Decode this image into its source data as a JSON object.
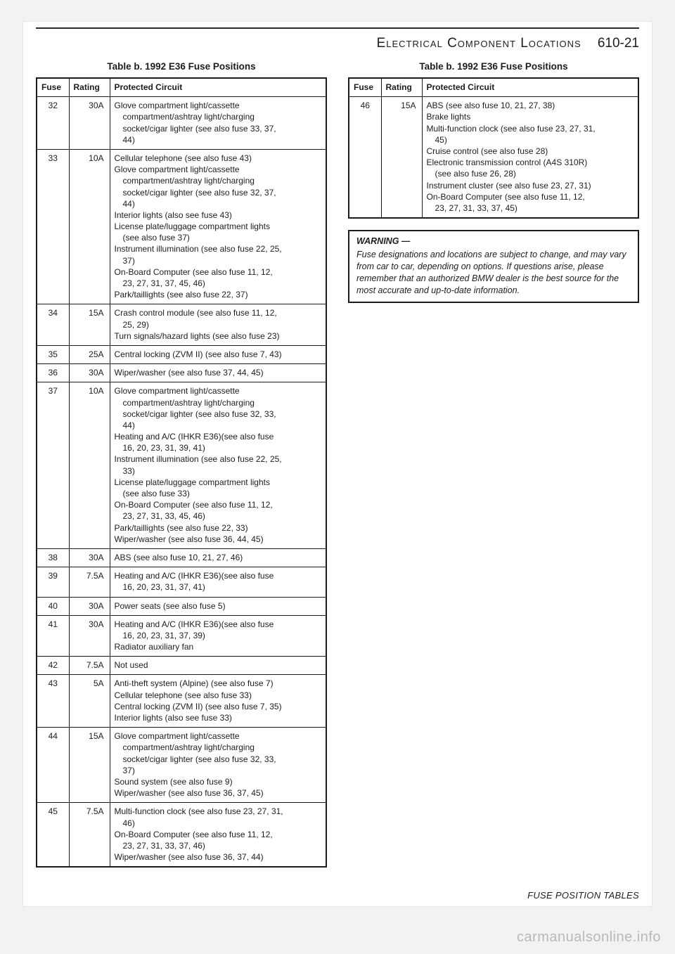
{
  "header": {
    "section": "Electrical Component Locations",
    "pageref": "610-21"
  },
  "footer_label": "FUSE POSITION TABLES",
  "watermark": "carmanualsonline.info",
  "table_title": "Table b. 1992 E36 Fuse Positions",
  "columns": {
    "fuse": "Fuse",
    "rating": "Rating",
    "circuit": "Protected Circuit"
  },
  "left_rows": [
    {
      "fuse": "32",
      "rating": "30A",
      "circuit": "Glove compartment light/cassette\n  compartment/ashtray light/charging\n  socket/cigar lighter (see also fuse 33, 37,\n  44)"
    },
    {
      "fuse": "33",
      "rating": "10A",
      "circuit": "Cellular telephone (see also fuse 43)\nGlove compartment light/cassette\n  compartment/ashtray light/charging\n  socket/cigar lighter (see also fuse 32, 37,\n  44)\nInterior lights (also see fuse 43)\nLicense plate/luggage compartment lights\n  (see also fuse 37)\nInstrument illumination (see also fuse 22, 25,\n  37)\nOn-Board Computer (see also fuse 11, 12,\n  23, 27, 31, 37, 45, 46)\nPark/taillights (see also fuse 22, 37)"
    },
    {
      "fuse": "34",
      "rating": "15A",
      "circuit": "Crash control module (see also fuse 11, 12,\n  25, 29)\nTurn signals/hazard lights (see also fuse 23)"
    },
    {
      "fuse": "35",
      "rating": "25A",
      "circuit": "Central locking (ZVM II) (see also fuse 7, 43)"
    },
    {
      "fuse": "36",
      "rating": "30A",
      "circuit": "Wiper/washer (see also fuse 37, 44, 45)"
    },
    {
      "fuse": "37",
      "rating": "10A",
      "circuit": "Glove compartment light/cassette\n  compartment/ashtray light/charging\n  socket/cigar lighter (see also fuse 32, 33,\n  44)\nHeating and A/C (IHKR E36)(see also fuse\n  16, 20, 23, 31, 39, 41)\nInstrument illumination (see also fuse 22, 25,\n  33)\nLicense plate/luggage compartment lights\n  (see also fuse 33)\nOn-Board Computer (see also fuse 11, 12,\n  23, 27, 31, 33, 45, 46)\nPark/taillights (see also fuse 22, 33)\nWiper/washer (see also fuse 36, 44, 45)"
    },
    {
      "fuse": "38",
      "rating": "30A",
      "circuit": "ABS (see also fuse 10, 21, 27, 46)"
    },
    {
      "fuse": "39",
      "rating": "7.5A",
      "circuit": "Heating and A/C (IHKR E36)(see also fuse\n  16, 20, 23, 31, 37, 41)"
    },
    {
      "fuse": "40",
      "rating": "30A",
      "circuit": "Power seats (see also fuse 5)"
    },
    {
      "fuse": "41",
      "rating": "30A",
      "circuit": "Heating and A/C (IHKR E36)(see also fuse\n  16, 20, 23, 31, 37, 39)\nRadiator auxiliary fan"
    },
    {
      "fuse": "42",
      "rating": "7.5A",
      "circuit": "Not used"
    },
    {
      "fuse": "43",
      "rating": "5A",
      "circuit": "Anti-theft system (Alpine) (see also fuse 7)\nCellular telephone (see also fuse 33)\nCentral locking (ZVM II) (see also fuse 7, 35)\nInterior lights (also see fuse 33)"
    },
    {
      "fuse": "44",
      "rating": "15A",
      "circuit": "Glove compartment light/cassette\n  compartment/ashtray light/charging\n  socket/cigar lighter (see also fuse 32, 33,\n  37)\nSound system (see also fuse 9)\nWiper/washer (see also fuse 36, 37, 45)"
    },
    {
      "fuse": "45",
      "rating": "7.5A",
      "circuit": "Multi-function clock (see also fuse 23, 27, 31,\n  46)\nOn-Board Computer (see also fuse 11, 12,\n  23, 27, 31, 33, 37, 46)\nWiper/washer (see also fuse 36, 37, 44)"
    }
  ],
  "right_rows": [
    {
      "fuse": "46",
      "rating": "15A",
      "circuit": "ABS (see also fuse 10, 21, 27, 38)\nBrake lights\nMulti-function clock (see also fuse 23, 27, 31,\n  45)\nCruise control (see also fuse 28)\nElectronic transmission control (A4S 310R)\n  (see also fuse 26, 28)\nInstrument cluster (see also fuse 23, 27, 31)\nOn-Board Computer (see also fuse 11, 12,\n  23, 27, 31, 33, 37, 45)"
    }
  ],
  "warning": {
    "title": "WARNING —",
    "body": "Fuse designations and locations are subject to change, and may vary from car to car, depending on options. If questions arise, please remember that an authorized BMW dealer is the best source for the most accurate and up-to-date information."
  }
}
